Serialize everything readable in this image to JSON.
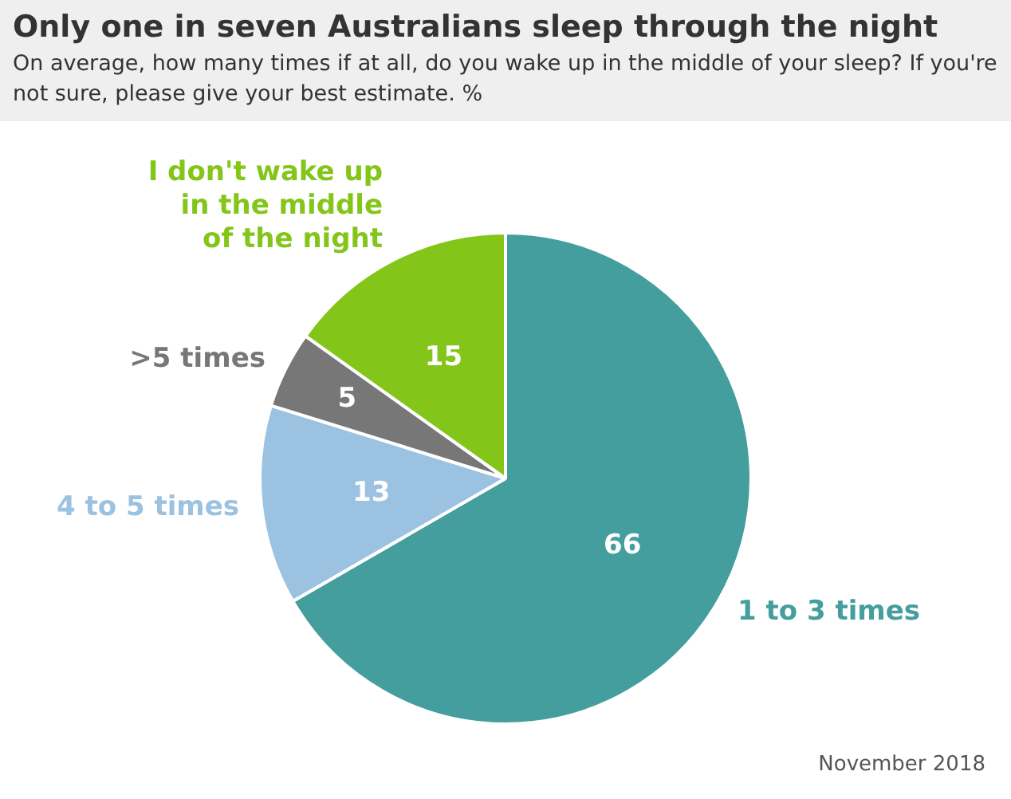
{
  "chart_data": {
    "type": "pie",
    "title": "Only one in seven Australians sleep through the night",
    "subtitle": "On average, how many times if at all, do you wake up in the middle of your sleep? If you're not sure, please give your best estimate. %",
    "categories": [
      "1 to 3 times",
      "4 to 5 times",
      ">5 times",
      "I don't wake up in the middle of the night"
    ],
    "values": [
      66,
      13,
      5,
      15
    ],
    "colors": [
      "#459e9e",
      "#9bc2e0",
      "#777777",
      "#84c51a"
    ],
    "data_labels": true,
    "annotations": [
      "November 2018"
    ]
  }
}
